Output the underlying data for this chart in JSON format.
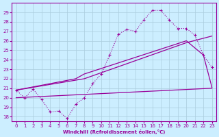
{
  "xlabel": "Windchill (Refroidissement éolien,°C)",
  "xlim": [
    -0.5,
    23.5
  ],
  "ylim": [
    17.5,
    30
  ],
  "yticks": [
    18,
    19,
    20,
    21,
    22,
    23,
    24,
    25,
    26,
    27,
    28,
    29
  ],
  "xticks": [
    0,
    1,
    2,
    3,
    4,
    5,
    6,
    7,
    8,
    9,
    10,
    11,
    12,
    13,
    14,
    15,
    16,
    17,
    18,
    19,
    20,
    21,
    22,
    23
  ],
  "bg_color": "#cceeff",
  "line_color": "#990099",
  "grid_color": "#aaccdd",
  "curve1_x": [
    0,
    1,
    2,
    3,
    4,
    5,
    6,
    7,
    8,
    9,
    10,
    11,
    12,
    13,
    14,
    15,
    16,
    17,
    18,
    19,
    20,
    21,
    22,
    23
  ],
  "curve1_y": [
    20.8,
    20.0,
    20.9,
    19.8,
    18.5,
    18.6,
    17.8,
    19.3,
    20.0,
    21.5,
    22.5,
    24.5,
    26.7,
    27.2,
    27.0,
    28.2,
    29.2,
    29.2,
    28.2,
    27.3,
    27.3,
    26.6,
    24.5,
    23.2
  ],
  "curve2_x": [
    0,
    7,
    8,
    20,
    22,
    23
  ],
  "curve2_y": [
    20.8,
    22.0,
    22.5,
    26.0,
    24.5,
    21.1
  ],
  "curve3_x": [
    0,
    8,
    20,
    23
  ],
  "curve3_y": [
    20.8,
    22.0,
    25.8,
    26.5
  ],
  "curve4_x": [
    0,
    23
  ],
  "curve4_y": [
    20.0,
    21.0
  ]
}
